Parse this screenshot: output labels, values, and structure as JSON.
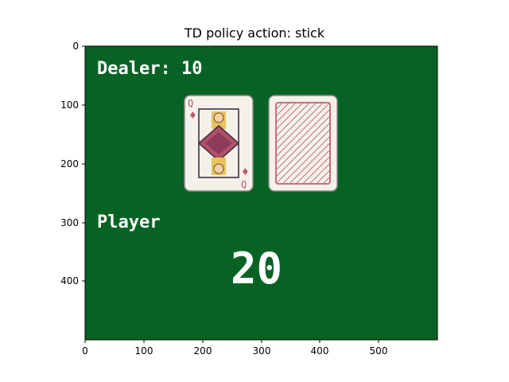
{
  "title": "TD policy action: stick",
  "game": {
    "dealer_label": "Dealer: 10",
    "player_label": "Player",
    "player_total": "20",
    "background_color": "#076324",
    "dealer_card": {
      "rank": "Q",
      "suit": "diamonds",
      "suit_symbol": "♦",
      "face_up": true
    },
    "hidden_card": {
      "face_up": false
    }
  },
  "axes": {
    "x_ticks": [
      "0",
      "100",
      "200",
      "300",
      "400",
      "500"
    ],
    "y_ticks": [
      "0",
      "100",
      "200",
      "300",
      "400"
    ]
  },
  "colors": {
    "table_green": "#076324",
    "card_face": "#f3f1ea",
    "card_red": "#c0546a",
    "card_back_pattern": "#c96f7e",
    "text_white": "#ffffff"
  }
}
